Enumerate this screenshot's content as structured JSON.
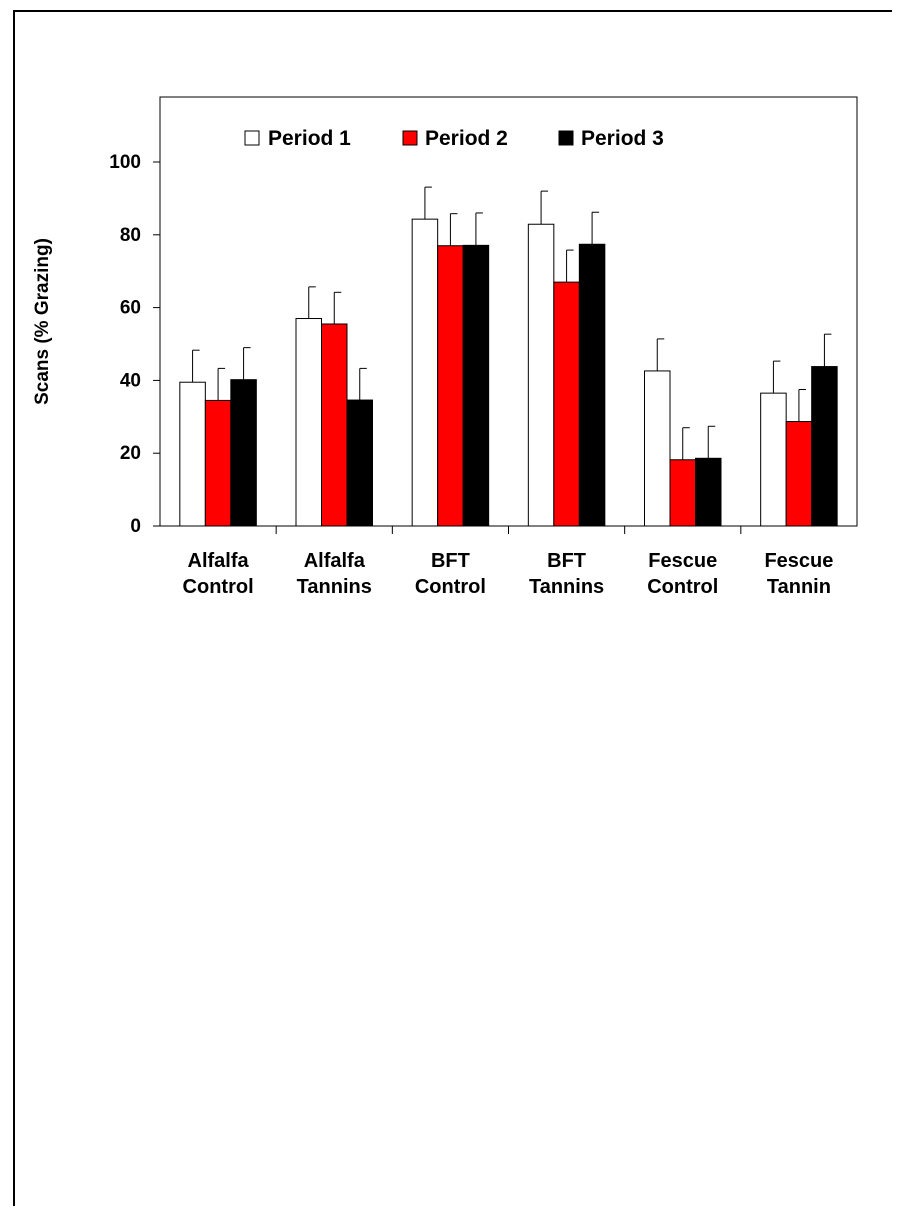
{
  "chart_data": {
    "type": "bar",
    "title": "",
    "xlabel": "",
    "ylabel": "Scans (% Grazing)",
    "ylim": [
      0,
      100
    ],
    "yticks": [
      0,
      20,
      40,
      60,
      80,
      100
    ],
    "categories": [
      [
        "Alfalfa",
        "Control"
      ],
      [
        "Alfalfa",
        "Tannins"
      ],
      [
        "BFT",
        "Control"
      ],
      [
        "BFT",
        "Tannins"
      ],
      [
        "Fescue",
        "Control"
      ],
      [
        "Fescue",
        "Tannin"
      ]
    ],
    "series": [
      {
        "name": "Period 1",
        "color": "#ffffff",
        "values": [
          39.5,
          57,
          84.3,
          82.9,
          42.6,
          36.5
        ],
        "errors": [
          8.8,
          8.7,
          8.8,
          9.1,
          8.8,
          8.8
        ]
      },
      {
        "name": "Period 2",
        "color": "#ff0000",
        "values": [
          34.5,
          55.5,
          77,
          67,
          18.2,
          28.7
        ],
        "errors": [
          8.8,
          8.7,
          8.8,
          8.8,
          8.8,
          8.8
        ]
      },
      {
        "name": "Period 3",
        "color": "#000000",
        "values": [
          40.2,
          34.6,
          77.1,
          77.4,
          18.6,
          43.8
        ],
        "errors": [
          8.8,
          8.7,
          8.9,
          8.8,
          8.8,
          8.9
        ]
      }
    ],
    "legend": "top",
    "grid": false
  }
}
